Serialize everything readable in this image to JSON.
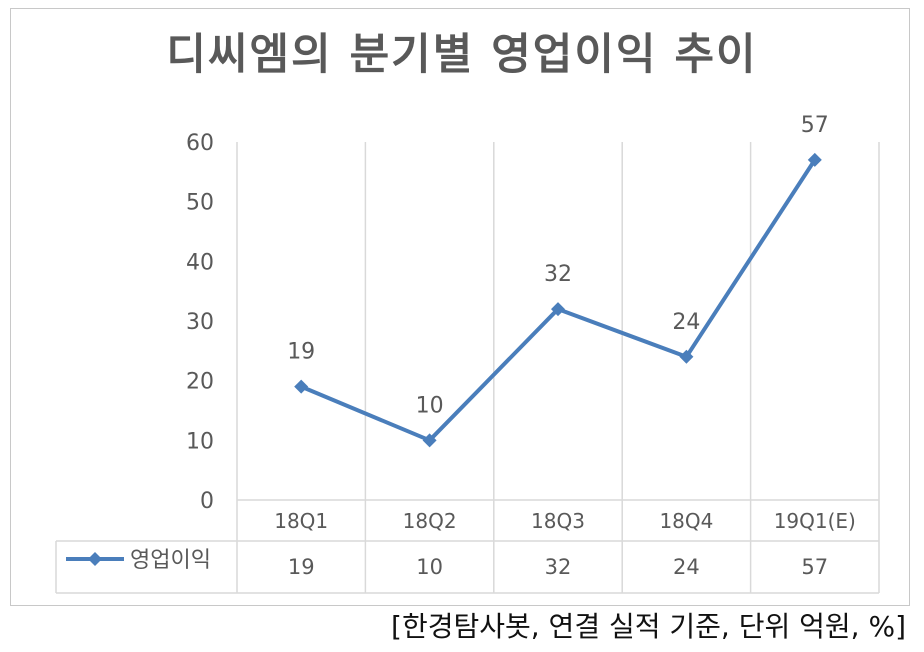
{
  "chart_data": {
    "type": "line",
    "title": "디씨엠의 분기별 영업이익 추이",
    "categories": [
      "18Q1",
      "18Q2",
      "18Q3",
      "18Q4",
      "19Q1(E)"
    ],
    "series": [
      {
        "name": "영업이익",
        "values": [
          19,
          10,
          32,
          24,
          57
        ]
      }
    ],
    "ylim": [
      0,
      60
    ],
    "yticks": [
      0,
      10,
      20,
      30,
      40,
      50,
      60
    ],
    "data_labels": [
      "19",
      "10",
      "32",
      "24",
      "57"
    ],
    "data_table": true,
    "grid": "vertical",
    "line_color": "#4a7ebb"
  },
  "source_note": "[한경탐사봇, 연결 실적 기준, 단위 억원, %]"
}
